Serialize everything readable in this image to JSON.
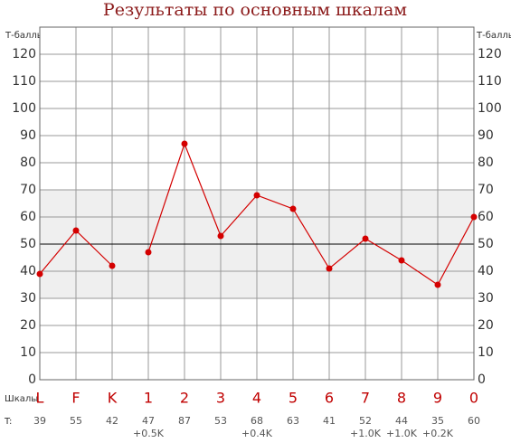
{
  "chart_data": {
    "type": "line",
    "title": "Результаты по основным шкалам",
    "y_label": "Т-баллы",
    "categories_label": "Шкалы",
    "values_label": "T:",
    "categories": [
      "L",
      "F",
      "K",
      "1",
      "2",
      "3",
      "4",
      "5",
      "6",
      "7",
      "8",
      "9",
      "0"
    ],
    "values": [
      39,
      55,
      42,
      47,
      87,
      53,
      68,
      63,
      41,
      52,
      44,
      35,
      60
    ],
    "corrections": [
      null,
      null,
      null,
      "+0.5K",
      null,
      null,
      "+0.4K",
      null,
      null,
      "+1.0K",
      "+1.0K",
      "+0.2K",
      null
    ],
    "color": "#d40000",
    "ylim": [
      0,
      130
    ],
    "yticks": [
      0,
      10,
      20,
      30,
      40,
      50,
      60,
      70,
      80,
      90,
      100,
      110,
      120
    ],
    "normal_band": [
      30,
      70
    ],
    "mean_line": 50,
    "grid": true
  }
}
